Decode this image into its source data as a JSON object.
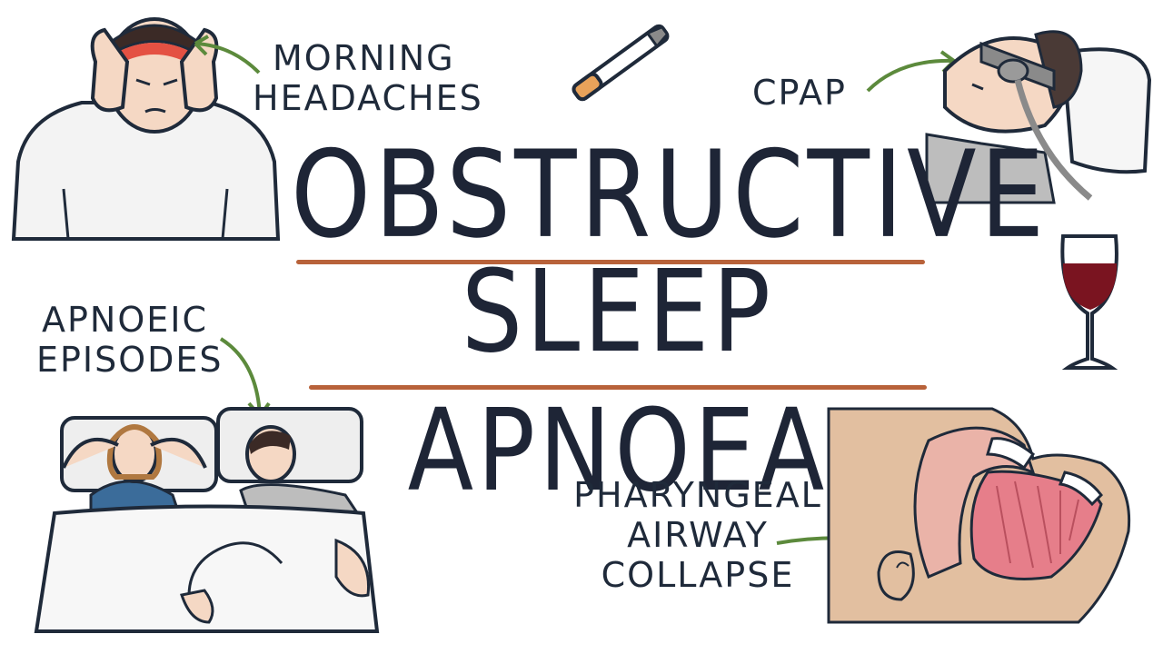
{
  "title": {
    "line1": "OBSTRUCTIVE",
    "line2": "SLEEP APNOEA"
  },
  "labels": {
    "morning_headaches": [
      "MORNING",
      "HEADACHES"
    ],
    "cpap": "CPAP",
    "apnoeic_episodes": [
      "APNOEIC",
      "EPISODES"
    ],
    "pharyngeal_airway_collapse": [
      "PHARYNGEAL",
      "AIRWAY",
      "COLLAPSE"
    ]
  },
  "colors": {
    "ink": "#1f2a3a",
    "rule": "#b8623a",
    "arrow": "#5c8a3c",
    "skin": "#f5d8c4",
    "wine": "#7a1420",
    "headache": "#d8362b"
  },
  "icons": [
    "headache-person-icon",
    "cigarette-icon",
    "cpap-patient-icon",
    "wine-glass-icon",
    "sleeping-couple-icon",
    "airway-cross-section-icon"
  ]
}
